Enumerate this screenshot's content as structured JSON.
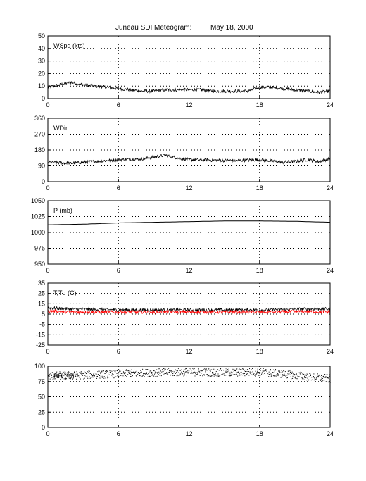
{
  "title": "Juneau SDI Meteogram:",
  "date": "May 18, 2000",
  "colors": {
    "line": "#000000",
    "dewpoint": "#ff0000",
    "grid": "#000000",
    "background": "#ffffff"
  },
  "chart_data": [
    {
      "type": "line",
      "label": "WSpd (kts)",
      "xlim": [
        0,
        24
      ],
      "ylim": [
        0,
        50
      ],
      "xticks": [
        0,
        6,
        12,
        18,
        24
      ],
      "yticks": [
        0,
        10,
        20,
        30,
        40,
        50
      ],
      "grid": true,
      "noisy": true,
      "series": [
        {
          "points": [
            [
              0,
              9
            ],
            [
              1,
              11
            ],
            [
              2,
              13
            ],
            [
              3,
              11
            ],
            [
              4,
              10
            ],
            [
              5,
              9
            ],
            [
              6,
              8
            ],
            [
              7,
              7
            ],
            [
              8,
              6
            ],
            [
              9,
              6
            ],
            [
              10,
              7
            ],
            [
              11,
              7
            ],
            [
              12,
              7
            ],
            [
              13,
              7
            ],
            [
              14,
              6
            ],
            [
              15,
              6
            ],
            [
              16,
              6
            ],
            [
              17,
              6
            ],
            [
              18,
              9
            ],
            [
              19,
              9
            ],
            [
              20,
              8
            ],
            [
              21,
              7
            ],
            [
              22,
              6
            ],
            [
              23,
              5
            ],
            [
              24,
              6
            ]
          ]
        }
      ]
    },
    {
      "type": "line",
      "label": "WDir",
      "xlim": [
        0,
        24
      ],
      "ylim": [
        0,
        360
      ],
      "xticks": [
        0,
        6,
        12,
        18,
        24
      ],
      "yticks": [
        0,
        90,
        180,
        270,
        360
      ],
      "grid": true,
      "noisy": true,
      "series": [
        {
          "points": [
            [
              0,
              110
            ],
            [
              2,
              105
            ],
            [
              4,
              115
            ],
            [
              6,
              125
            ],
            [
              8,
              130
            ],
            [
              9,
              140
            ],
            [
              10,
              150
            ],
            [
              11,
              135
            ],
            [
              12,
              125
            ],
            [
              14,
              122
            ],
            [
              16,
              120
            ],
            [
              18,
              125
            ],
            [
              20,
              110
            ],
            [
              21,
              115
            ],
            [
              22,
              125
            ],
            [
              23,
              115
            ],
            [
              24,
              130
            ]
          ]
        }
      ]
    },
    {
      "type": "line",
      "label": "P (mb)",
      "xlim": [
        0,
        24
      ],
      "ylim": [
        950,
        1050
      ],
      "xticks": [
        0,
        6,
        12,
        18,
        24
      ],
      "yticks": [
        950,
        975,
        1000,
        1025,
        1050
      ],
      "grid": true,
      "noisy": false,
      "series": [
        {
          "points": [
            [
              0,
              1012
            ],
            [
              3,
              1013
            ],
            [
              6,
              1015
            ],
            [
              9,
              1016
            ],
            [
              12,
              1017
            ],
            [
              15,
              1018
            ],
            [
              18,
              1018
            ],
            [
              21,
              1017.5
            ],
            [
              24,
              1016
            ]
          ]
        }
      ]
    },
    {
      "type": "line",
      "label": "T,Td (C)",
      "xlim": [
        0,
        24
      ],
      "ylim": [
        -25,
        35
      ],
      "xticks": [
        0,
        6,
        12,
        18,
        24
      ],
      "yticks": [
        -25,
        -15,
        -5,
        5,
        15,
        25,
        35
      ],
      "grid": true,
      "noisy": true,
      "series": [
        {
          "color": "#000000",
          "points": [
            [
              0,
              11
            ],
            [
              2,
              10
            ],
            [
              6,
              9
            ],
            [
              12,
              9
            ],
            [
              18,
              9
            ],
            [
              22,
              10
            ],
            [
              24,
              10
            ]
          ]
        },
        {
          "color": "#ff0000",
          "points": [
            [
              0,
              8
            ],
            [
              2,
              7
            ],
            [
              6,
              7
            ],
            [
              12,
              7
            ],
            [
              18,
              7
            ],
            [
              22,
              7.5
            ],
            [
              24,
              7
            ]
          ]
        }
      ]
    },
    {
      "type": "scatter",
      "label": "RH (%)",
      "xlim": [
        0,
        24
      ],
      "ylim": [
        0,
        100
      ],
      "xticks": [
        0,
        6,
        12,
        18,
        24
      ],
      "yticks": [
        0,
        25,
        50,
        75,
        100
      ],
      "grid": true,
      "noisy": true,
      "series": [
        {
          "points": [
            [
              0,
              85
            ],
            [
              3,
              86
            ],
            [
              6,
              88
            ],
            [
              9,
              90
            ],
            [
              12,
              91
            ],
            [
              15,
              90
            ],
            [
              18,
              91
            ],
            [
              21,
              86
            ],
            [
              24,
              80
            ]
          ]
        }
      ]
    }
  ]
}
